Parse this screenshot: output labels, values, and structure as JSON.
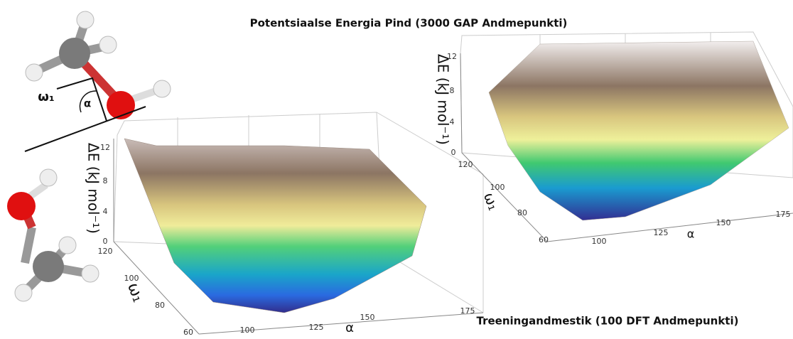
{
  "figure": {
    "title": "Potentsiaalse Energia Pind (3000 GAP Andmepunkti)",
    "caption": "Treeningandmestik (100 DFT Andmepunkti)"
  },
  "molecule": {
    "omega_label": "ω₁",
    "alpha_label": "α"
  },
  "plots": [
    {
      "z_label": "ΔE (kJ mol⁻¹)",
      "y_label": "ω₁",
      "x_label": "α",
      "z_ticks": [
        "0",
        "4",
        "8",
        "12"
      ],
      "y_ticks": [
        "120",
        "100",
        "80",
        "60"
      ],
      "x_ticks": [
        "100",
        "125",
        "150",
        "175"
      ]
    },
    {
      "z_label": "ΔE (kJ mol⁻¹)",
      "y_label": "ω₁",
      "x_label": "α",
      "z_ticks": [
        "0",
        "4",
        "8",
        "12"
      ],
      "y_ticks": [
        "120",
        "100",
        "80",
        "60"
      ],
      "x_ticks": [
        "100",
        "125",
        "150",
        "175"
      ]
    }
  ]
}
